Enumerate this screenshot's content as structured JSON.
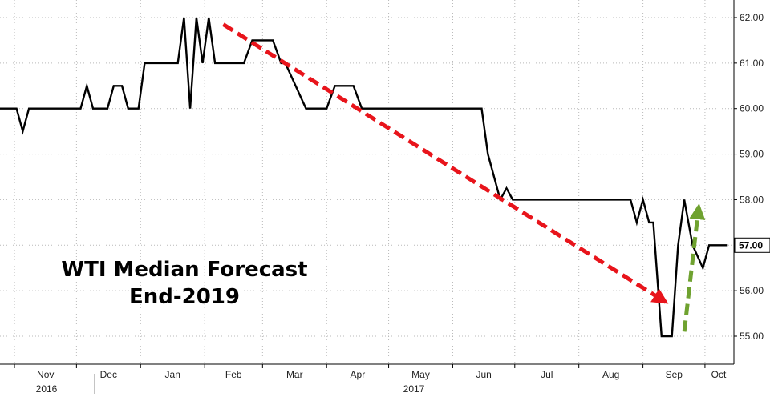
{
  "chart_data": {
    "type": "line",
    "annotation_lines": [
      "WTI Median Forecast",
      "End-2019"
    ],
    "x_month_labels": [
      "Nov",
      "Dec",
      "Jan",
      "Feb",
      "Mar",
      "Apr",
      "May",
      "Jun",
      "Jul",
      "Aug",
      "Sep",
      "Oct"
    ],
    "x_year_labels": [
      "2016",
      "2017"
    ],
    "y_ticks": [
      55.0,
      56.0,
      57.0,
      58.0,
      59.0,
      60.0,
      61.0,
      62.0
    ],
    "y_tick_labels": [
      "55.00",
      "56.00",
      "57.00",
      "58.00",
      "59.00",
      "60.00",
      "61.00",
      "62.00"
    ],
    "ylim": [
      54.4,
      62.2
    ],
    "grid": true,
    "last_value_label": "57.00",
    "series": [
      {
        "values": [
          [
            "2016-10-25",
            60.0
          ],
          [
            "2016-11-02",
            60.0
          ],
          [
            "2016-11-05",
            59.5
          ],
          [
            "2016-11-08",
            60.0
          ],
          [
            "2016-12-03",
            60.0
          ],
          [
            "2016-12-06",
            60.5
          ],
          [
            "2016-12-09",
            60.0
          ],
          [
            "2016-12-16",
            60.0
          ],
          [
            "2016-12-19",
            60.5
          ],
          [
            "2016-12-23",
            60.5
          ],
          [
            "2016-12-26",
            60.0
          ],
          [
            "2016-12-31",
            60.0
          ],
          [
            "2017-01-03",
            61.0
          ],
          [
            "2017-01-19",
            61.0
          ],
          [
            "2017-01-22",
            62.0
          ],
          [
            "2017-01-25",
            60.0
          ],
          [
            "2017-01-28",
            62.0
          ],
          [
            "2017-01-31",
            61.0
          ],
          [
            "2017-02-03",
            62.0
          ],
          [
            "2017-02-06",
            61.0
          ],
          [
            "2017-02-20",
            61.0
          ],
          [
            "2017-02-24",
            61.5
          ],
          [
            "2017-03-06",
            61.5
          ],
          [
            "2017-03-10",
            61.0
          ],
          [
            "2017-03-12",
            61.0
          ],
          [
            "2017-03-22",
            60.0
          ],
          [
            "2017-04-01",
            60.0
          ],
          [
            "2017-04-05",
            60.5
          ],
          [
            "2017-04-14",
            60.5
          ],
          [
            "2017-04-18",
            60.0
          ],
          [
            "2017-06-15",
            60.0
          ],
          [
            "2017-06-18",
            59.0
          ],
          [
            "2017-06-24",
            58.0
          ],
          [
            "2017-06-27",
            58.25
          ],
          [
            "2017-06-30",
            58.0
          ],
          [
            "2017-08-26",
            58.0
          ],
          [
            "2017-08-29",
            57.5
          ],
          [
            "2017-09-01",
            58.0
          ],
          [
            "2017-09-04",
            57.5
          ],
          [
            "2017-09-06",
            57.5
          ],
          [
            "2017-09-10",
            55.0
          ],
          [
            "2017-09-15",
            55.0
          ],
          [
            "2017-09-18",
            57.0
          ],
          [
            "2017-09-21",
            58.0
          ],
          [
            "2017-09-25",
            57.0
          ],
          [
            "2017-09-30",
            56.5
          ],
          [
            "2017-10-03",
            57.0
          ],
          [
            "2017-10-12",
            57.0
          ]
        ]
      }
    ],
    "arrows": [
      {
        "color": "#e8141b",
        "from": [
          "2017-02-10",
          61.85
        ],
        "to": [
          "2017-09-12",
          55.75
        ]
      },
      {
        "color": "#6fa230",
        "from": [
          "2017-09-21",
          55.1
        ],
        "to": [
          "2017-09-28",
          57.85
        ]
      }
    ]
  }
}
